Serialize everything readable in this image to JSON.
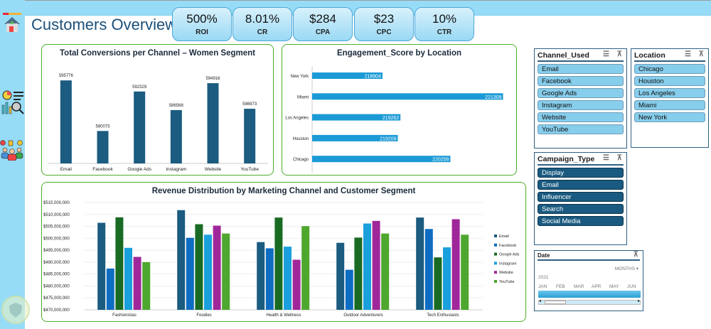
{
  "header": {
    "title": "Customers Overview"
  },
  "kpis": [
    {
      "value": "500%",
      "label": "ROI"
    },
    {
      "value": "8.01%",
      "label": "CR"
    },
    {
      "value": "$284",
      "label": "CPA"
    },
    {
      "value": "$23",
      "label": "CPC"
    },
    {
      "value": "10%",
      "label": "CTR"
    }
  ],
  "sidebar": {
    "icons": [
      "home-icon",
      "analytics-icon",
      "customers-icon",
      "logo-watermark"
    ]
  },
  "chart_data": [
    {
      "type": "bar",
      "title": "Total Conversions per Channel – Women Segment",
      "categories": [
        "Email",
        "Facebook",
        "Google Ads",
        "Instagram",
        "Website",
        "YouTube"
      ],
      "values": [
        595776,
        580073,
        592329,
        586568,
        594916,
        586973
      ],
      "ylim": [
        570000,
        600000
      ],
      "color": "#1b5c80"
    },
    {
      "type": "bar",
      "orientation": "horizontal",
      "title": "Engagement_Score by Location",
      "categories": [
        "New York",
        "Miami",
        "Los Angeles",
        "Houston",
        "Chicago"
      ],
      "values": [
        218904,
        221309,
        219262,
        219209,
        220258
      ],
      "xlim": [
        217500,
        221500
      ],
      "color": "#1b9ad6"
    },
    {
      "type": "bar",
      "title": "Revenue Distribution by Marketing Channel and Customer Segment",
      "categories": [
        "Fashionistas",
        "Foodies",
        "Health & Wellness",
        "Outdoor Adventurers",
        "Tech Enthusiasts"
      ],
      "yticks": [
        "$470,000,000",
        "$475,000,000",
        "$480,000,000",
        "$485,000,000",
        "$490,000,000",
        "$495,000,000",
        "$500,000,000",
        "$505,000,000",
        "$510,000,000",
        "$515,000,000"
      ],
      "ylim": [
        470000000,
        515000000
      ],
      "legend": "right",
      "series": [
        {
          "name": "Email",
          "color": "#1b5c80",
          "values": [
            506500000,
            511800000,
            498400000,
            498100000,
            508700000
          ]
        },
        {
          "name": "Facebook",
          "color": "#0e6cc2",
          "values": [
            487300000,
            500200000,
            495800000,
            486800000,
            503900000
          ]
        },
        {
          "name": "Google Ads",
          "color": "#196b24",
          "values": [
            508800000,
            505900000,
            508700000,
            500300000,
            492000000
          ]
        },
        {
          "name": "Instagram",
          "color": "#1aa0dc",
          "values": [
            496000000,
            501500000,
            496500000,
            506200000,
            496200000
          ]
        },
        {
          "name": "Website",
          "color": "#a0279a",
          "values": [
            492200000,
            505300000,
            491000000,
            507300000,
            508000000
          ]
        },
        {
          "name": "YouTube",
          "color": "#4ea72e",
          "values": [
            490000000,
            502000000,
            505100000,
            502000000,
            501500000
          ]
        }
      ]
    }
  ],
  "slicers": {
    "channel": {
      "title": "Channel_Used",
      "items": [
        "Email",
        "Facebook",
        "Google Ads",
        "Instagram",
        "Website",
        "YouTube"
      ]
    },
    "location": {
      "title": "Location",
      "items": [
        "Chicago",
        "Houston",
        "Los Angeles",
        "Miami",
        "New York"
      ]
    },
    "campaign": {
      "title": "Campaign_Type",
      "items": [
        "Display",
        "Email",
        "Influencer",
        "Search",
        "Social Media"
      ]
    },
    "date": {
      "title": "Date",
      "level": "MONTHS",
      "year": "2021",
      "months": [
        "JAN",
        "FEB",
        "MAR",
        "APR",
        "MAY",
        "JUN"
      ]
    }
  }
}
